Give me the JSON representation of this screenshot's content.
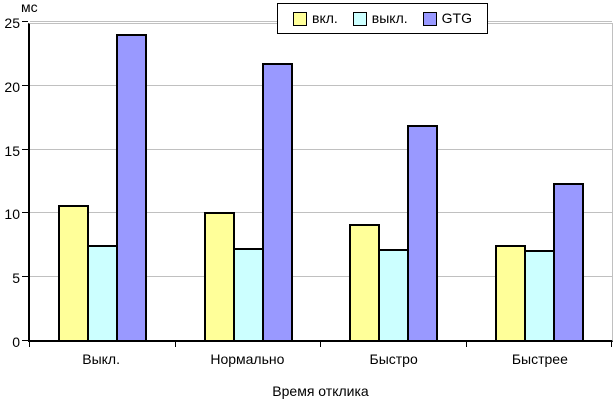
{
  "chart_data": {
    "type": "bar",
    "title": "",
    "unit_label": "мс",
    "xlabel": "Время отклика",
    "categories": [
      "Выкл.",
      "Нормально",
      "Быстро",
      "Быстрее"
    ],
    "series": [
      {
        "name": "вкл.",
        "color": "#FFFF99",
        "values": [
          10.7,
          10.1,
          9.2,
          7.5
        ]
      },
      {
        "name": "выкл.",
        "color": "#CCFFFF",
        "values": [
          7.5,
          7.3,
          7.2,
          7.1
        ]
      },
      {
        "name": "GTG",
        "color": "#9999FF",
        "values": [
          24.2,
          21.9,
          17.0,
          12.4
        ]
      }
    ],
    "ylim": [
      0,
      25
    ],
    "yticks": [
      0,
      5,
      10,
      15,
      20,
      25
    ],
    "grid": true,
    "legend_position": "top-center"
  },
  "colors": {
    "background": "#FFFFFF",
    "gridline": "#C0C0C0",
    "axis": "#000000",
    "text": "#000000"
  }
}
